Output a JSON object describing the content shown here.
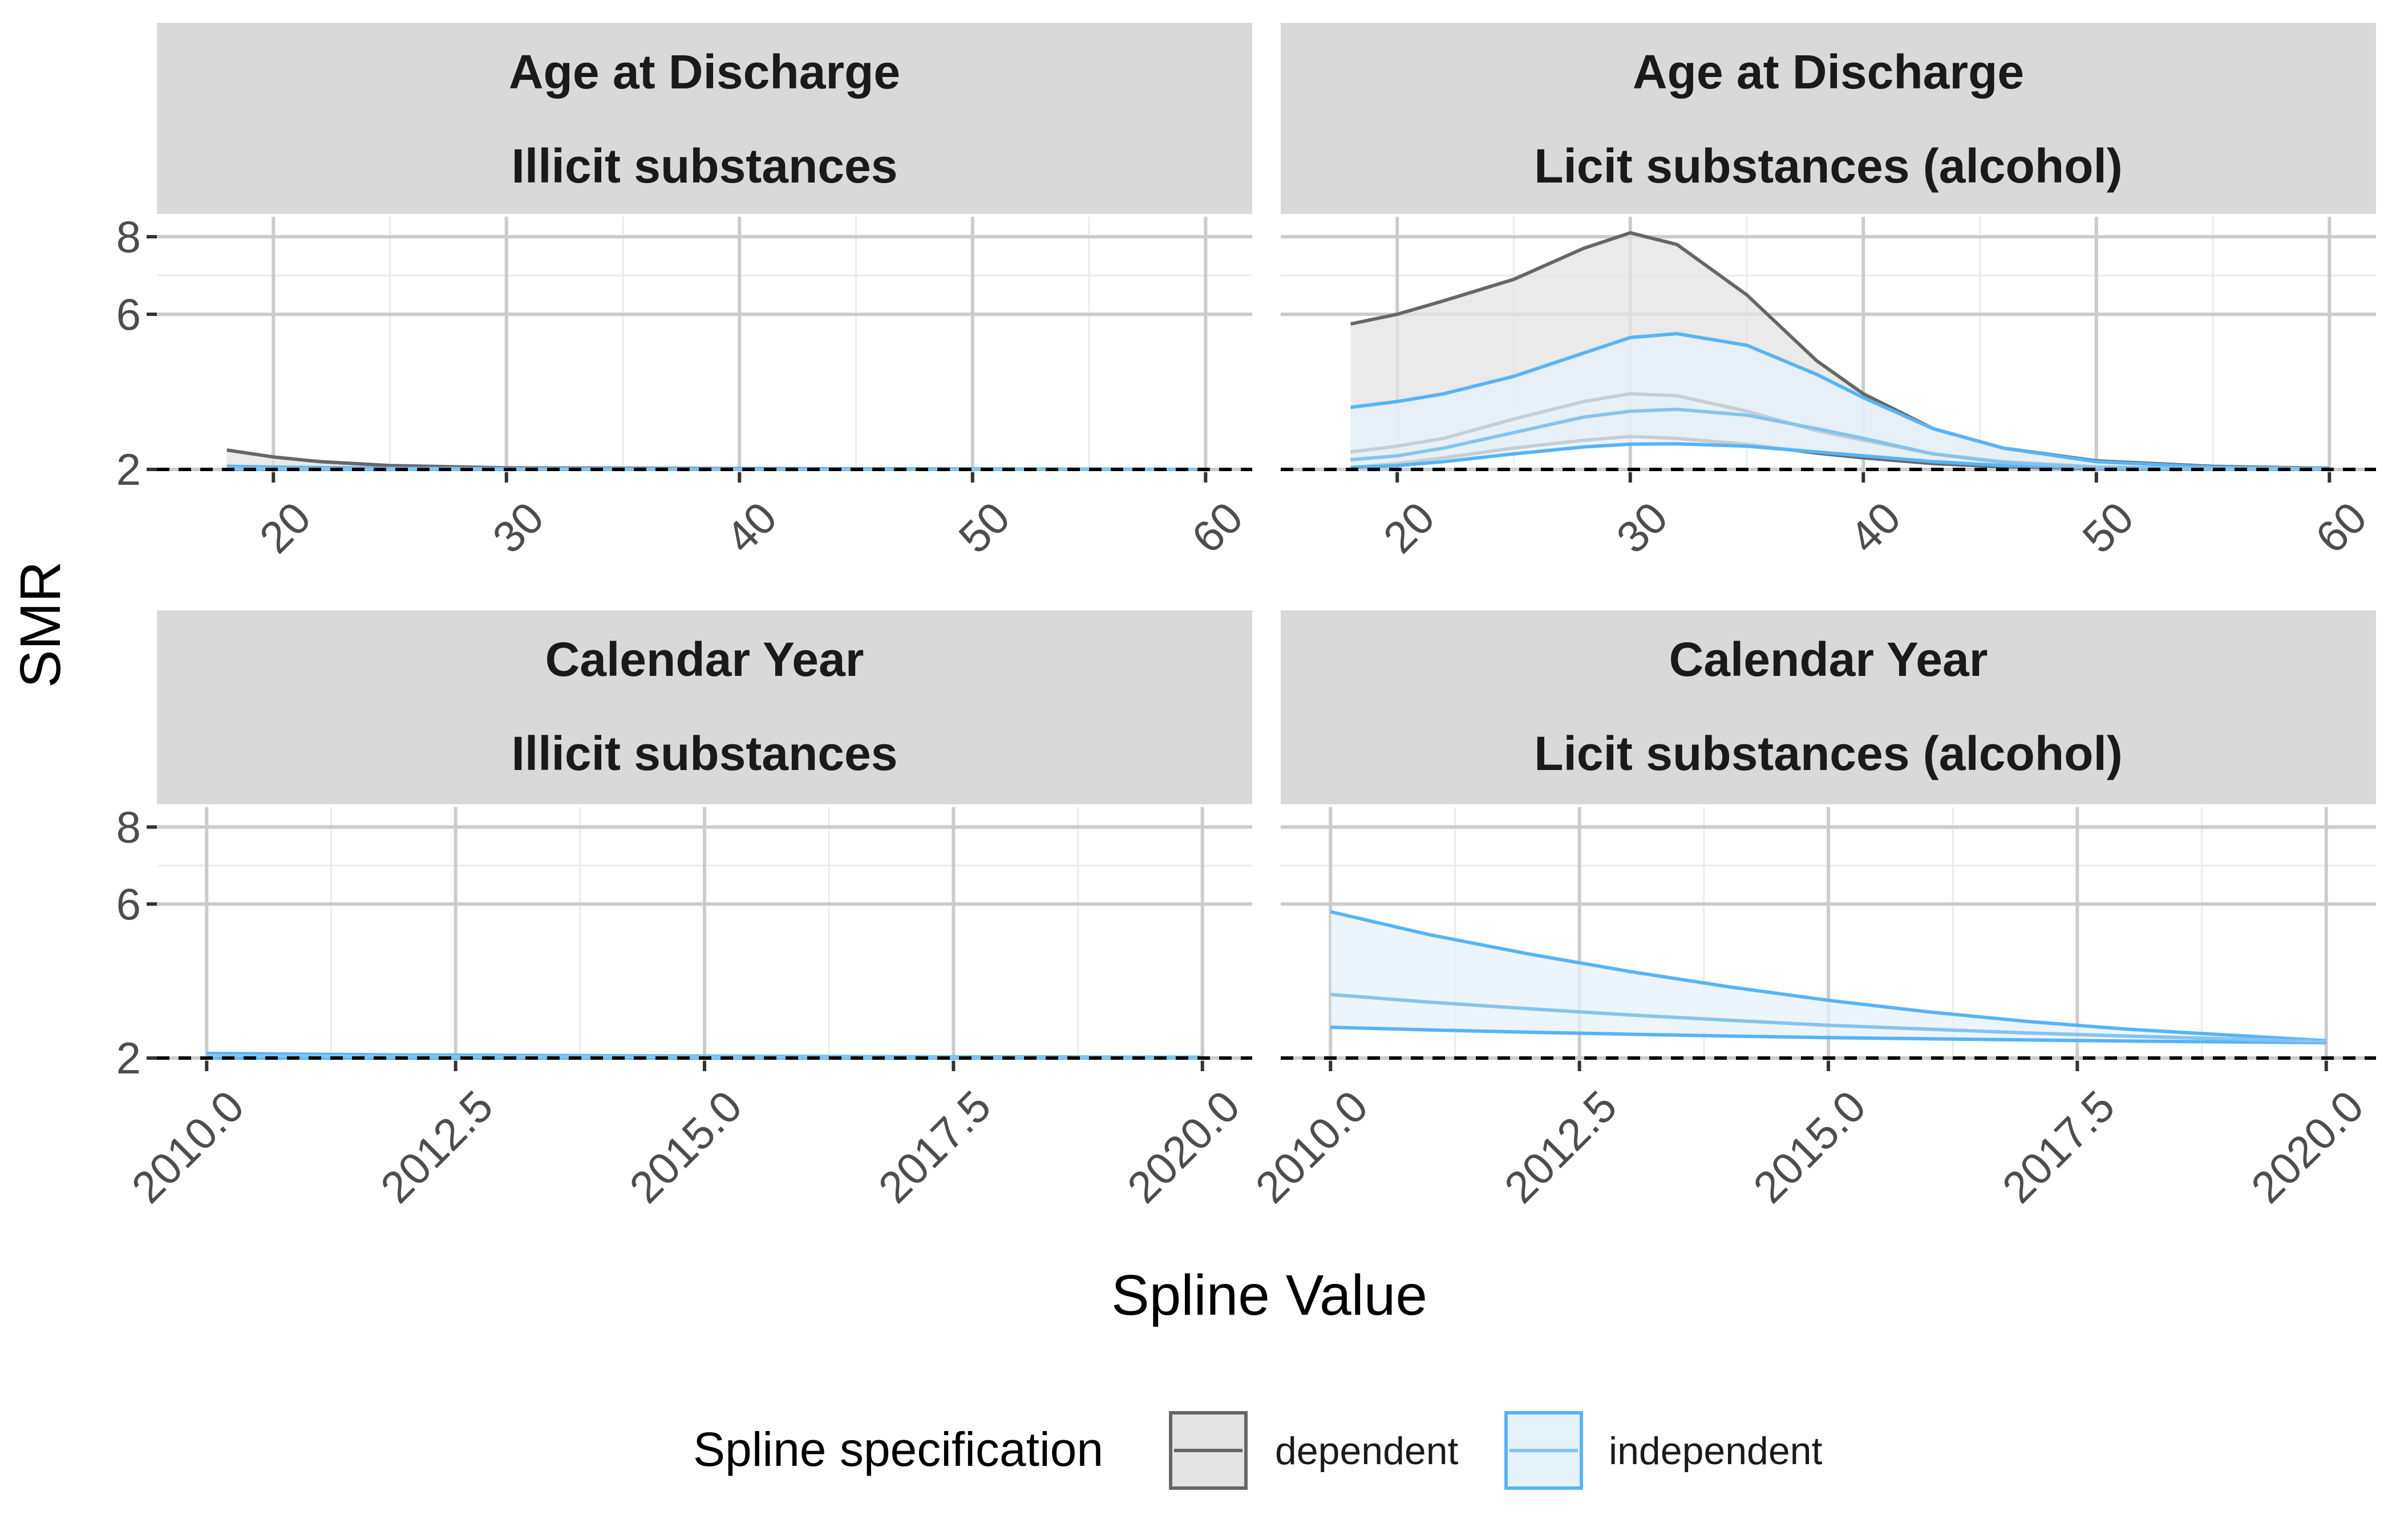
{
  "chart_data": {
    "type": "line",
    "ylabel": "SMR",
    "xlabel": "Spline Value",
    "ylim": [
      2,
      8
    ],
    "y_ticks": [
      "2",
      "6",
      "8"
    ],
    "reference_line": {
      "y": 2,
      "style": "dashed"
    },
    "legend": {
      "title": "Spline specification",
      "position": "bottom",
      "entries": [
        {
          "label": "dependent",
          "color": "#666666",
          "fill": "#e3e3e3"
        },
        {
          "label": "independent",
          "color": "#56b4f5",
          "fill": "#e6f2f9"
        }
      ]
    },
    "colors": {
      "dependent": "#666666",
      "independent": "#56b4f5",
      "independent_light": "#86c3ec"
    },
    "panels": [
      {
        "strip": [
          "Age at Discharge",
          "Illicit substances"
        ],
        "xlim": [
          15,
          62
        ],
        "x_ticks": [
          20,
          30,
          40,
          50,
          60
        ],
        "x_tick_labels": [
          "20",
          "30",
          "40",
          "50",
          "60"
        ],
        "series": [
          {
            "spec": "dependent",
            "x": [
              18,
              20,
              22,
              25,
              30,
              40,
              50,
              60
            ],
            "upper": [
              2.5,
              2.32,
              2.2,
              2.1,
              2.04,
              2.02,
              2.01,
              2.0
            ],
            "estimate": [
              2.08,
              2.05,
              2.03,
              2.02,
              2.01,
              2.0,
              2.0,
              2.0
            ],
            "lower": [
              2.0,
              2.0,
              2.0,
              2.0,
              2.0,
              2.0,
              2.0,
              2.0
            ]
          },
          {
            "spec": "independent",
            "x": [
              18,
              20,
              25,
              30,
              40,
              50,
              60
            ],
            "upper": [
              2.08,
              2.06,
              2.03,
              2.02,
              2.01,
              2.01,
              2.0
            ],
            "estimate": [
              2.03,
              2.02,
              2.01,
              2.01,
              2.0,
              2.0,
              2.0
            ],
            "lower": [
              2.0,
              2.0,
              2.0,
              2.0,
              2.0,
              2.0,
              2.0
            ]
          }
        ]
      },
      {
        "strip": [
          "Age at Discharge",
          "Licit substances (alcohol)"
        ],
        "xlim": [
          15,
          62
        ],
        "x_ticks": [
          20,
          30,
          40,
          50,
          60
        ],
        "x_tick_labels": [
          "20",
          "30",
          "40",
          "50",
          "60"
        ],
        "series": [
          {
            "spec": "dependent",
            "x": [
              18,
              20,
              22,
              25,
              28,
              30,
              32,
              35,
              38,
              40,
              43,
              46,
              50,
              55,
              60
            ],
            "upper": [
              5.75,
              6.0,
              6.35,
              6.9,
              7.7,
              8.1,
              7.8,
              6.5,
              4.8,
              3.95,
              3.05,
              2.55,
              2.22,
              2.08,
              2.03
            ],
            "estimate": [
              2.45,
              2.6,
              2.8,
              3.3,
              3.75,
              3.95,
              3.9,
              3.5,
              3.0,
              2.75,
              2.4,
              2.2,
              2.07,
              2.02,
              2.01
            ],
            "lower": [
              2.05,
              2.15,
              2.3,
              2.55,
              2.75,
              2.85,
              2.8,
              2.65,
              2.42,
              2.3,
              2.15,
              2.07,
              2.02,
              2.01,
              2.0
            ]
          },
          {
            "spec": "independent",
            "x": [
              18,
              20,
              22,
              25,
              28,
              30,
              32,
              35,
              38,
              40,
              43,
              46,
              50,
              55,
              60
            ],
            "upper": [
              3.6,
              3.75,
              3.95,
              4.4,
              5.0,
              5.4,
              5.5,
              5.2,
              4.45,
              3.85,
              3.05,
              2.55,
              2.2,
              2.06,
              2.02
            ],
            "estimate": [
              2.25,
              2.35,
              2.55,
              2.95,
              3.35,
              3.5,
              3.55,
              3.4,
              3.05,
              2.8,
              2.4,
              2.18,
              2.05,
              2.02,
              2.01
            ],
            "lower": [
              2.05,
              2.1,
              2.2,
              2.4,
              2.58,
              2.65,
              2.66,
              2.6,
              2.45,
              2.35,
              2.2,
              2.1,
              2.03,
              2.01,
              2.0
            ]
          }
        ]
      },
      {
        "strip": [
          "Calendar Year",
          "Illicit substances"
        ],
        "xlim": [
          2009.5,
          2020.5
        ],
        "x_ticks": [
          2010,
          2012.5,
          2015,
          2017.5,
          2020
        ],
        "x_tick_labels": [
          "2010.0",
          "2012.5",
          "2015.0",
          "2017.5",
          "2020.0"
        ],
        "series": [
          {
            "spec": "dependent",
            "x": [
              2010,
              2012,
              2015,
              2017.5,
              2020
            ],
            "upper": [
              2.1,
              2.07,
              2.04,
              2.03,
              2.02
            ],
            "estimate": [
              2.05,
              2.04,
              2.02,
              2.02,
              2.01
            ],
            "lower": [
              2.0,
              2.0,
              2.0,
              2.0,
              2.0
            ]
          },
          {
            "spec": "independent",
            "x": [
              2010,
              2012,
              2015,
              2017.5,
              2020
            ],
            "upper": [
              2.12,
              2.08,
              2.05,
              2.03,
              2.02
            ],
            "estimate": [
              2.06,
              2.04,
              2.03,
              2.02,
              2.01
            ],
            "lower": [
              2.0,
              2.0,
              2.0,
              2.0,
              2.0
            ]
          }
        ]
      },
      {
        "strip": [
          "Calendar Year",
          "Licit substances (alcohol)"
        ],
        "xlim": [
          2009.5,
          2020.5
        ],
        "x_ticks": [
          2010,
          2012.5,
          2015,
          2017.5,
          2020
        ],
        "x_tick_labels": [
          "2010.0",
          "2012.5",
          "2015.0",
          "2017.5",
          "2020.0"
        ],
        "series": [
          {
            "spec": "independent",
            "x": [
              2010,
              2011,
              2012,
              2013,
              2014,
              2015,
              2016,
              2017,
              2018,
              2019,
              2020
            ],
            "upper": [
              5.8,
              5.2,
              4.7,
              4.25,
              3.85,
              3.5,
              3.2,
              2.95,
              2.75,
              2.6,
              2.45
            ],
            "estimate": [
              3.65,
              3.45,
              3.28,
              3.12,
              2.98,
              2.85,
              2.75,
              2.65,
              2.57,
              2.5,
              2.43
            ],
            "lower": [
              2.8,
              2.73,
              2.67,
              2.62,
              2.57,
              2.53,
              2.5,
              2.47,
              2.44,
              2.42,
              2.4
            ]
          }
        ]
      }
    ]
  }
}
